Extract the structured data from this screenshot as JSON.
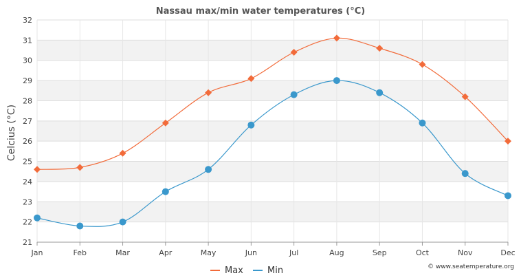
{
  "chart_data": {
    "type": "line",
    "title": "Nassau max/min water temperatures (°C)",
    "xlabel": "",
    "ylabel": "Celcius (°C)",
    "categories": [
      "Jan",
      "Feb",
      "Mar",
      "Apr",
      "May",
      "Jun",
      "Jul",
      "Aug",
      "Sep",
      "Oct",
      "Nov",
      "Dec"
    ],
    "ylim": [
      21,
      32
    ],
    "yticks": [
      21,
      22,
      23,
      24,
      25,
      26,
      27,
      28,
      29,
      30,
      31,
      32
    ],
    "grid": true,
    "legend_position": "bottom-center",
    "series": [
      {
        "name": "Max",
        "color": "#f26b3a",
        "marker": "diamond",
        "values": [
          24.6,
          24.7,
          25.4,
          26.9,
          28.4,
          29.1,
          30.4,
          31.1,
          30.6,
          29.8,
          28.2,
          26.0
        ]
      },
      {
        "name": "Min",
        "color": "#3a98cc",
        "marker": "circle",
        "values": [
          22.2,
          21.8,
          22.0,
          23.5,
          24.6,
          26.8,
          28.3,
          29.0,
          28.4,
          26.9,
          24.4,
          23.3
        ]
      }
    ]
  },
  "credit": "© www.seatemperature.org"
}
